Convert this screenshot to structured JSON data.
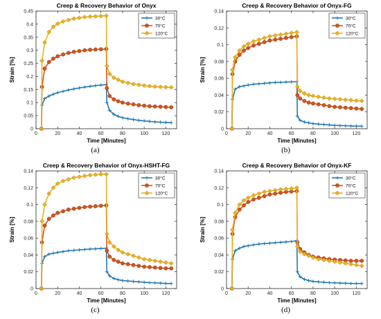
{
  "colors": {
    "s30": "#1f77b4",
    "s70": "#d95319",
    "s120": "#edb120"
  },
  "chart_data": [
    {
      "type": "line",
      "title": "Creep & Recovery Behavior of Onyx",
      "xlabel": "Time [Minutes]",
      "ylabel": "Strain [%]",
      "xlim": [
        0,
        130
      ],
      "ylim": [
        0,
        0.45
      ],
      "xticks": [
        0,
        20,
        40,
        60,
        80,
        100,
        120
      ],
      "yticks": [
        0,
        0.05,
        0.1,
        0.15,
        0.2,
        0.25,
        0.3,
        0.35,
        0.4,
        0.45
      ],
      "ytick_labels": [
        "0",
        "0.05",
        "0.1",
        "0.15",
        "0.2",
        "0.25",
        "0.3",
        "0.35",
        "0.4",
        "0.45"
      ],
      "grid": false,
      "legend": "top-right",
      "caption": "(a)",
      "series": [
        {
          "name": "30°C",
          "marker": "plus",
          "x": [
            5,
            5.5,
            8,
            12,
            16,
            20,
            25,
            30,
            35,
            40,
            45,
            50,
            55,
            60,
            65,
            65.5,
            68,
            72,
            76,
            80,
            85,
            90,
            95,
            100,
            105,
            110,
            115,
            120,
            125
          ],
          "y": [
            0,
            0.09,
            0.115,
            0.125,
            0.132,
            0.138,
            0.143,
            0.148,
            0.152,
            0.156,
            0.159,
            0.162,
            0.165,
            0.167,
            0.169,
            0.1,
            0.07,
            0.055,
            0.047,
            0.042,
            0.038,
            0.035,
            0.032,
            0.03,
            0.028,
            0.026,
            0.025,
            0.024,
            0.023
          ]
        },
        {
          "name": "70°C",
          "marker": "circle",
          "x": [
            5,
            5.5,
            8,
            12,
            16,
            20,
            25,
            30,
            35,
            40,
            45,
            50,
            55,
            60,
            65,
            65.5,
            68,
            72,
            76,
            80,
            85,
            90,
            95,
            100,
            105,
            110,
            115,
            120,
            125
          ],
          "y": [
            0,
            0.16,
            0.23,
            0.255,
            0.268,
            0.277,
            0.284,
            0.29,
            0.294,
            0.297,
            0.3,
            0.302,
            0.303,
            0.304,
            0.305,
            0.155,
            0.125,
            0.112,
            0.105,
            0.1,
            0.096,
            0.093,
            0.09,
            0.088,
            0.086,
            0.085,
            0.084,
            0.083,
            0.082
          ]
        },
        {
          "name": "120°C",
          "marker": "diamond",
          "x": [
            5,
            5.5,
            8,
            12,
            16,
            20,
            25,
            30,
            35,
            40,
            45,
            50,
            55,
            60,
            65,
            65.5,
            68,
            72,
            76,
            80,
            85,
            90,
            95,
            100,
            105,
            110,
            115,
            120,
            125
          ],
          "y": [
            0,
            0.26,
            0.33,
            0.37,
            0.39,
            0.402,
            0.41,
            0.416,
            0.421,
            0.424,
            0.427,
            0.429,
            0.43,
            0.431,
            0.432,
            0.24,
            0.21,
            0.195,
            0.187,
            0.18,
            0.175,
            0.171,
            0.168,
            0.165,
            0.163,
            0.161,
            0.16,
            0.159,
            0.158
          ]
        }
      ]
    },
    {
      "type": "line",
      "title": "Creep & Recovery Behavior of Onyx-FG",
      "xlabel": "Time [Minutes]",
      "ylabel": "Strain [%]",
      "xlim": [
        0,
        130
      ],
      "ylim": [
        0,
        0.14
      ],
      "xticks": [
        0,
        20,
        40,
        60,
        80,
        100,
        120
      ],
      "yticks": [
        0,
        0.02,
        0.04,
        0.06,
        0.08,
        0.1,
        0.12,
        0.14
      ],
      "ytick_labels": [
        "0",
        "0.02",
        "0.04",
        "0.06",
        "0.08",
        "0.1",
        "0.12",
        "0.14"
      ],
      "grid": false,
      "legend": "top-right",
      "caption": "(b)",
      "series": [
        {
          "name": "30°C",
          "marker": "plus",
          "x": [
            5,
            5.5,
            8,
            12,
            16,
            20,
            25,
            30,
            35,
            40,
            45,
            50,
            55,
            60,
            65,
            65.5,
            68,
            72,
            76,
            80,
            85,
            90,
            95,
            100,
            105,
            110,
            115,
            120,
            125
          ],
          "y": [
            0,
            0.035,
            0.047,
            0.05,
            0.051,
            0.052,
            0.053,
            0.0535,
            0.054,
            0.0545,
            0.055,
            0.0552,
            0.0555,
            0.0557,
            0.056,
            0.015,
            0.01,
            0.008,
            0.007,
            0.006,
            0.0055,
            0.005,
            0.0045,
            0.004,
            0.0038,
            0.0035,
            0.0033,
            0.003,
            0.003
          ]
        },
        {
          "name": "70°C",
          "marker": "circle",
          "x": [
            5,
            5.5,
            8,
            12,
            16,
            20,
            25,
            30,
            35,
            40,
            45,
            50,
            55,
            60,
            65,
            65.5,
            68,
            72,
            76,
            80,
            85,
            90,
            95,
            100,
            105,
            110,
            115,
            120,
            125
          ],
          "y": [
            0,
            0.065,
            0.08,
            0.088,
            0.093,
            0.096,
            0.099,
            0.101,
            0.103,
            0.105,
            0.106,
            0.107,
            0.108,
            0.109,
            0.11,
            0.04,
            0.036,
            0.033,
            0.031,
            0.03,
            0.029,
            0.028,
            0.027,
            0.026,
            0.0255,
            0.025,
            0.0245,
            0.024,
            0.0235
          ]
        },
        {
          "name": "120°C",
          "marker": "diamond",
          "x": [
            5,
            5.5,
            8,
            12,
            16,
            20,
            25,
            30,
            35,
            40,
            45,
            50,
            55,
            60,
            65,
            65.5,
            68,
            72,
            76,
            80,
            85,
            90,
            95,
            100,
            105,
            110,
            115,
            120,
            125
          ],
          "y": [
            0,
            0.07,
            0.085,
            0.093,
            0.098,
            0.101,
            0.104,
            0.106,
            0.108,
            0.11,
            0.111,
            0.112,
            0.113,
            0.114,
            0.115,
            0.05,
            0.045,
            0.042,
            0.04,
            0.039,
            0.038,
            0.037,
            0.036,
            0.0355,
            0.035,
            0.0345,
            0.034,
            0.0335,
            0.033
          ]
        }
      ]
    },
    {
      "type": "line",
      "title": "Creep & Recovery Behavior of Onyx-HSHT-FG",
      "xlabel": "Time [Minutes]",
      "ylabel": "Strain [%]",
      "xlim": [
        0,
        130
      ],
      "ylim": [
        0,
        0.14
      ],
      "xticks": [
        0,
        20,
        40,
        60,
        80,
        100,
        120
      ],
      "yticks": [
        0,
        0.02,
        0.04,
        0.06,
        0.08,
        0.1,
        0.12,
        0.14
      ],
      "ytick_labels": [
        "0",
        "0.02",
        "0.04",
        "0.06",
        "0.08",
        "0.1",
        "0.12",
        "0.14"
      ],
      "grid": false,
      "legend": "top-right",
      "caption": "(c)",
      "series": [
        {
          "name": "30°C",
          "marker": "plus",
          "x": [
            5,
            5.5,
            8,
            12,
            16,
            20,
            25,
            30,
            35,
            40,
            45,
            50,
            55,
            60,
            65,
            65.5,
            68,
            72,
            76,
            80,
            85,
            90,
            95,
            100,
            105,
            110,
            115,
            120,
            125
          ],
          "y": [
            0,
            0.03,
            0.038,
            0.041,
            0.042,
            0.043,
            0.044,
            0.045,
            0.0455,
            0.046,
            0.0465,
            0.047,
            0.0473,
            0.0477,
            0.048,
            0.02,
            0.015,
            0.012,
            0.0105,
            0.0095,
            0.009,
            0.0085,
            0.008,
            0.0075,
            0.007,
            0.0068,
            0.0065,
            0.006,
            0.006
          ]
        },
        {
          "name": "70°C",
          "marker": "circle",
          "x": [
            5,
            5.5,
            8,
            12,
            16,
            20,
            25,
            30,
            35,
            40,
            45,
            50,
            55,
            60,
            65,
            65.5,
            68,
            72,
            76,
            80,
            85,
            90,
            95,
            100,
            105,
            110,
            115,
            120,
            125
          ],
          "y": [
            0,
            0.055,
            0.075,
            0.083,
            0.087,
            0.09,
            0.092,
            0.094,
            0.095,
            0.096,
            0.097,
            0.0975,
            0.098,
            0.0985,
            0.099,
            0.045,
            0.038,
            0.034,
            0.032,
            0.03,
            0.029,
            0.028,
            0.027,
            0.026,
            0.0255,
            0.025,
            0.0245,
            0.024,
            0.024
          ]
        },
        {
          "name": "120°C",
          "marker": "diamond",
          "x": [
            5,
            5.5,
            8,
            12,
            16,
            20,
            25,
            30,
            35,
            40,
            45,
            50,
            55,
            60,
            65,
            65.5,
            68,
            72,
            76,
            80,
            85,
            90,
            95,
            100,
            105,
            110,
            115,
            120,
            125
          ],
          "y": [
            0,
            0.08,
            0.1,
            0.113,
            0.12,
            0.125,
            0.128,
            0.13,
            0.132,
            0.133,
            0.134,
            0.135,
            0.1355,
            0.136,
            0.136,
            0.065,
            0.055,
            0.05,
            0.046,
            0.043,
            0.041,
            0.039,
            0.037,
            0.035,
            0.034,
            0.033,
            0.032,
            0.031,
            0.03
          ]
        }
      ]
    },
    {
      "type": "line",
      "title": "Creep & Recovery Behavior of Onyx-KF",
      "xlabel": "Time [Minutes]",
      "ylabel": "Strain [%]",
      "xlim": [
        0,
        130
      ],
      "ylim": [
        0,
        0.14
      ],
      "xticks": [
        0,
        20,
        40,
        60,
        80,
        100,
        120
      ],
      "yticks": [
        0,
        0.02,
        0.04,
        0.06,
        0.08,
        0.1,
        0.12,
        0.14
      ],
      "ytick_labels": [
        "0",
        "0.02",
        "0.04",
        "0.06",
        "0.08",
        "0.1",
        "0.12",
        "0.14"
      ],
      "grid": false,
      "legend": "top-right",
      "caption": "(d)",
      "series": [
        {
          "name": "30°C",
          "marker": "plus",
          "x": [
            5,
            5.5,
            8,
            12,
            16,
            20,
            25,
            30,
            35,
            40,
            45,
            50,
            55,
            60,
            65,
            65.5,
            68,
            72,
            76,
            80,
            85,
            90,
            95,
            100,
            105,
            110,
            115,
            120,
            125
          ],
          "y": [
            0,
            0.035,
            0.045,
            0.048,
            0.05,
            0.051,
            0.052,
            0.053,
            0.0535,
            0.054,
            0.0545,
            0.055,
            0.0555,
            0.056,
            0.057,
            0.02,
            0.014,
            0.011,
            0.0095,
            0.0085,
            0.008,
            0.0075,
            0.007,
            0.0068,
            0.0065,
            0.0063,
            0.006,
            0.006,
            0.006
          ]
        },
        {
          "name": "70°C",
          "marker": "circle",
          "x": [
            5,
            5.5,
            8,
            12,
            16,
            20,
            25,
            30,
            35,
            40,
            45,
            50,
            55,
            60,
            65,
            65.5,
            68,
            72,
            76,
            80,
            85,
            90,
            95,
            100,
            105,
            110,
            115,
            120,
            125
          ],
          "y": [
            0,
            0.065,
            0.085,
            0.094,
            0.099,
            0.103,
            0.106,
            0.108,
            0.11,
            0.112,
            0.113,
            0.114,
            0.115,
            0.1155,
            0.116,
            0.055,
            0.047,
            0.043,
            0.04,
            0.038,
            0.037,
            0.036,
            0.035,
            0.0345,
            0.034,
            0.0335,
            0.033,
            0.033,
            0.033
          ]
        },
        {
          "name": "120°C",
          "marker": "diamond",
          "x": [
            5,
            5.5,
            8,
            12,
            16,
            20,
            25,
            30,
            35,
            40,
            45,
            50,
            55,
            60,
            65,
            65.5,
            68,
            72,
            76,
            80,
            85,
            90,
            95,
            100,
            105,
            110,
            115,
            120,
            125
          ],
          "y": [
            0,
            0.07,
            0.09,
            0.1,
            0.105,
            0.108,
            0.111,
            0.113,
            0.115,
            0.116,
            0.117,
            0.118,
            0.1185,
            0.119,
            0.12,
            0.05,
            0.044,
            0.041,
            0.039,
            0.037,
            0.035,
            0.034,
            0.033,
            0.032,
            0.031,
            0.03,
            0.029,
            0.028,
            0.027
          ]
        }
      ]
    }
  ]
}
